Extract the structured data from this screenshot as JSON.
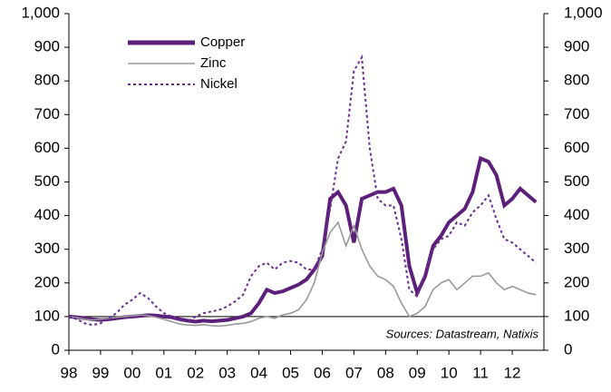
{
  "chart_data": {
    "type": "line",
    "annotation": "Sources: Datastream, Natixis",
    "reference_line": 100,
    "legend": "upper left",
    "x": [
      1998,
      1998.25,
      1998.5,
      1998.75,
      1999,
      1999.25,
      1999.5,
      1999.75,
      2000,
      2000.25,
      2000.5,
      2000.75,
      2001,
      2001.25,
      2001.5,
      2001.75,
      2002,
      2002.25,
      2002.5,
      2002.75,
      2003,
      2003.25,
      2003.5,
      2003.75,
      2004,
      2004.25,
      2004.5,
      2004.75,
      2005,
      2005.25,
      2005.5,
      2005.75,
      2006,
      2006.25,
      2006.5,
      2006.75,
      2007,
      2007.25,
      2007.5,
      2007.75,
      2008,
      2008.25,
      2008.5,
      2008.75,
      2009,
      2009.25,
      2009.5,
      2009.75,
      2010,
      2010.25,
      2010.5,
      2010.75,
      2011,
      2011.25,
      2011.5,
      2011.75,
      2012,
      2012.25,
      2012.5,
      2012.75
    ],
    "series": [
      {
        "name": "Copper",
        "color": "#5c1f7a",
        "values": [
          100,
          98,
          95,
          92,
          90,
          92,
          95,
          98,
          100,
          102,
          104,
          103,
          100,
          98,
          92,
          88,
          85,
          88,
          86,
          88,
          90,
          95,
          100,
          110,
          140,
          180,
          170,
          175,
          185,
          195,
          210,
          240,
          280,
          450,
          470,
          430,
          320,
          450,
          460,
          470,
          470,
          480,
          430,
          250,
          170,
          220,
          310,
          340,
          380,
          400,
          420,
          470,
          570,
          560,
          520,
          430,
          450,
          480,
          460,
          440
        ]
      },
      {
        "name": "Zinc",
        "color": "#999999",
        "values": [
          100,
          97,
          92,
          90,
          92,
          95,
          98,
          100,
          102,
          105,
          103,
          98,
          92,
          85,
          78,
          75,
          74,
          76,
          73,
          72,
          74,
          78,
          80,
          85,
          95,
          100,
          95,
          105,
          110,
          120,
          150,
          200,
          290,
          350,
          380,
          310,
          370,
          300,
          250,
          220,
          210,
          190,
          140,
          100,
          110,
          130,
          180,
          200,
          210,
          180,
          200,
          220,
          220,
          230,
          200,
          180,
          190,
          180,
          170,
          165
        ]
      },
      {
        "name": "Nickel",
        "color": "#6a2c8e",
        "dashed": true,
        "values": [
          100,
          92,
          80,
          75,
          80,
          95,
          110,
          135,
          150,
          170,
          155,
          130,
          110,
          100,
          90,
          85,
          100,
          110,
          115,
          120,
          130,
          145,
          165,
          220,
          250,
          260,
          240,
          260,
          265,
          260,
          240,
          240,
          300,
          420,
          570,
          620,
          830,
          870,
          600,
          450,
          430,
          430,
          330,
          180,
          160,
          230,
          300,
          330,
          340,
          380,
          370,
          410,
          430,
          460,
          390,
          330,
          320,
          300,
          280,
          260
        ]
      }
    ],
    "xlim": [
      1998,
      2013
    ],
    "xticks": [
      {
        "value": 1998,
        "label": "98"
      },
      {
        "value": 1999,
        "label": "99"
      },
      {
        "value": 2000,
        "label": "00"
      },
      {
        "value": 2001,
        "label": "01"
      },
      {
        "value": 2002,
        "label": "02"
      },
      {
        "value": 2003,
        "label": "03"
      },
      {
        "value": 2004,
        "label": "04"
      },
      {
        "value": 2005,
        "label": "05"
      },
      {
        "value": 2006,
        "label": "06"
      },
      {
        "value": 2007,
        "label": "07"
      },
      {
        "value": 2008,
        "label": "08"
      },
      {
        "value": 2009,
        "label": "09"
      },
      {
        "value": 2010,
        "label": "10"
      },
      {
        "value": 2011,
        "label": "11"
      },
      {
        "value": 2012,
        "label": "12"
      }
    ],
    "ylim": [
      0,
      1000
    ],
    "yticks": [
      0,
      100,
      200,
      300,
      400,
      500,
      600,
      700,
      800,
      900,
      {
        "value": 1000,
        "label": "1,000"
      }
    ],
    "y2lim": [
      0,
      1000
    ],
    "y2ticks": [
      0,
      100,
      200,
      300,
      400,
      500,
      600,
      700,
      800,
      900,
      {
        "value": 1000,
        "label": "1,000"
      }
    ]
  }
}
